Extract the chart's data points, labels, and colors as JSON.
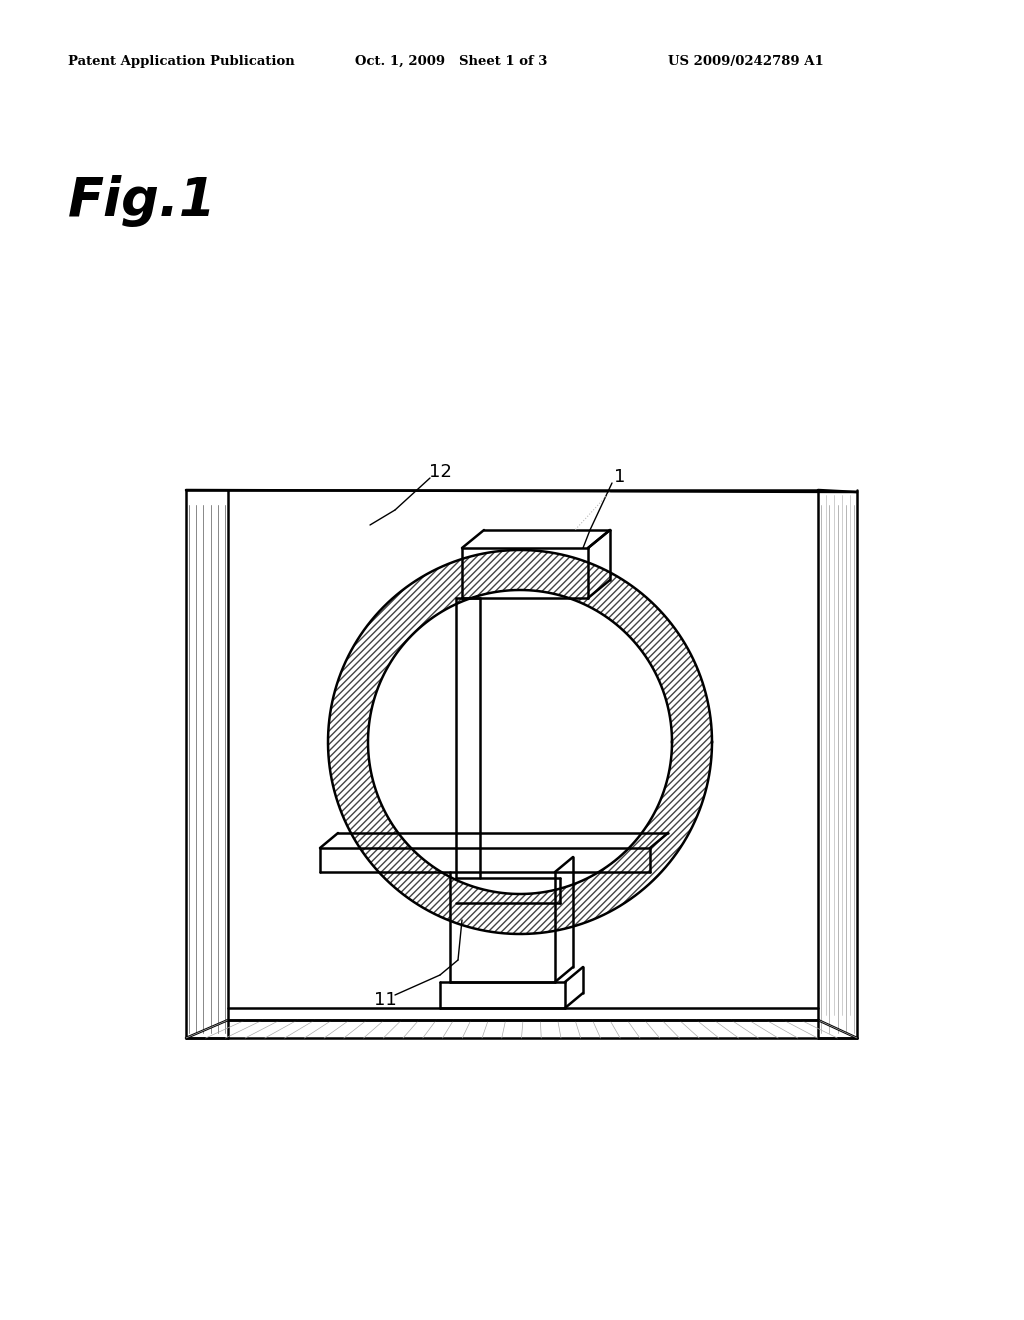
{
  "background_color": "#ffffff",
  "header_left": "Patent Application Publication",
  "header_center": "Oct. 1, 2009   Sheet 1 of 3",
  "header_right": "US 2009/0242789 A1",
  "fig_label": "Fig.1",
  "label_1": "1",
  "label_11": "11",
  "label_12": "12",
  "line_color": "#000000",
  "hatch_color": "#555555",
  "light_line": "#aaaaaa"
}
